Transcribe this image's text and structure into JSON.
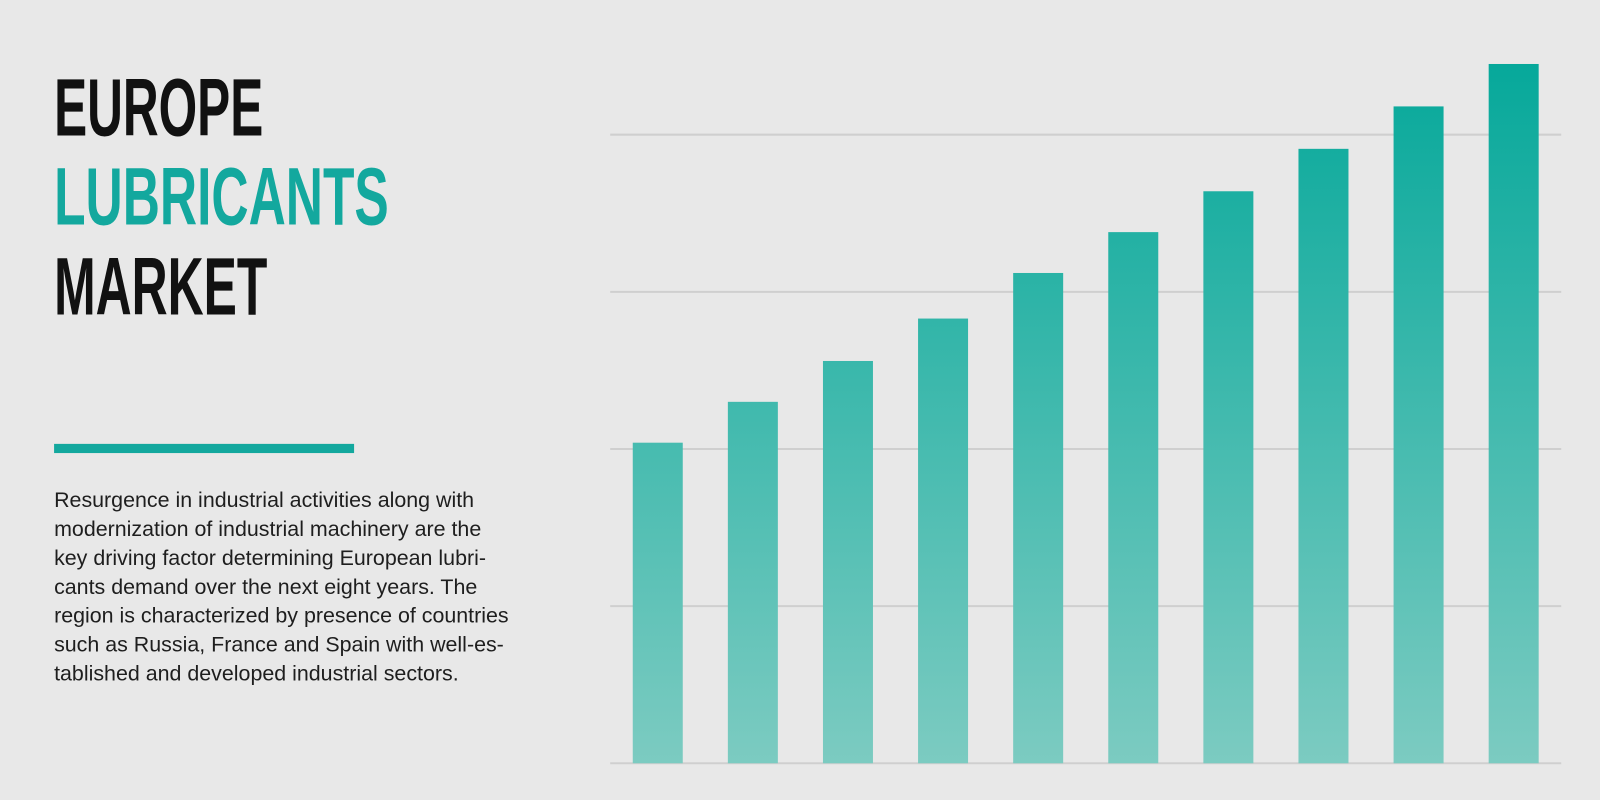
{
  "header": {
    "title_lines": [
      "EUROPE",
      "LUBRICANTS",
      "MARKET"
    ]
  },
  "description_lines": [
    "Resurgence in industrial activities along with",
    "modernization of industrial machinery are the",
    "key driving factor determining European lubri-",
    "cants demand over the next eight years. The",
    "region is characterized by presence of countries",
    "such as Russia, France and Spain with well-es-",
    "tablished and developed industrial sectors."
  ],
  "chart_data": {
    "type": "bar",
    "categories": [
      null,
      null,
      null,
      null,
      null,
      null,
      null,
      null,
      null,
      null
    ],
    "values": [
      2.04,
      2.3,
      2.56,
      2.83,
      3.12,
      3.38,
      3.64,
      3.91,
      4.18,
      4.45
    ],
    "color_top": "#05a89a",
    "color_bottom": "#7ccbc1",
    "ylim": [
      0,
      4.5
    ],
    "yticks": [
      0,
      1,
      2,
      3,
      4
    ],
    "grid": true
  }
}
